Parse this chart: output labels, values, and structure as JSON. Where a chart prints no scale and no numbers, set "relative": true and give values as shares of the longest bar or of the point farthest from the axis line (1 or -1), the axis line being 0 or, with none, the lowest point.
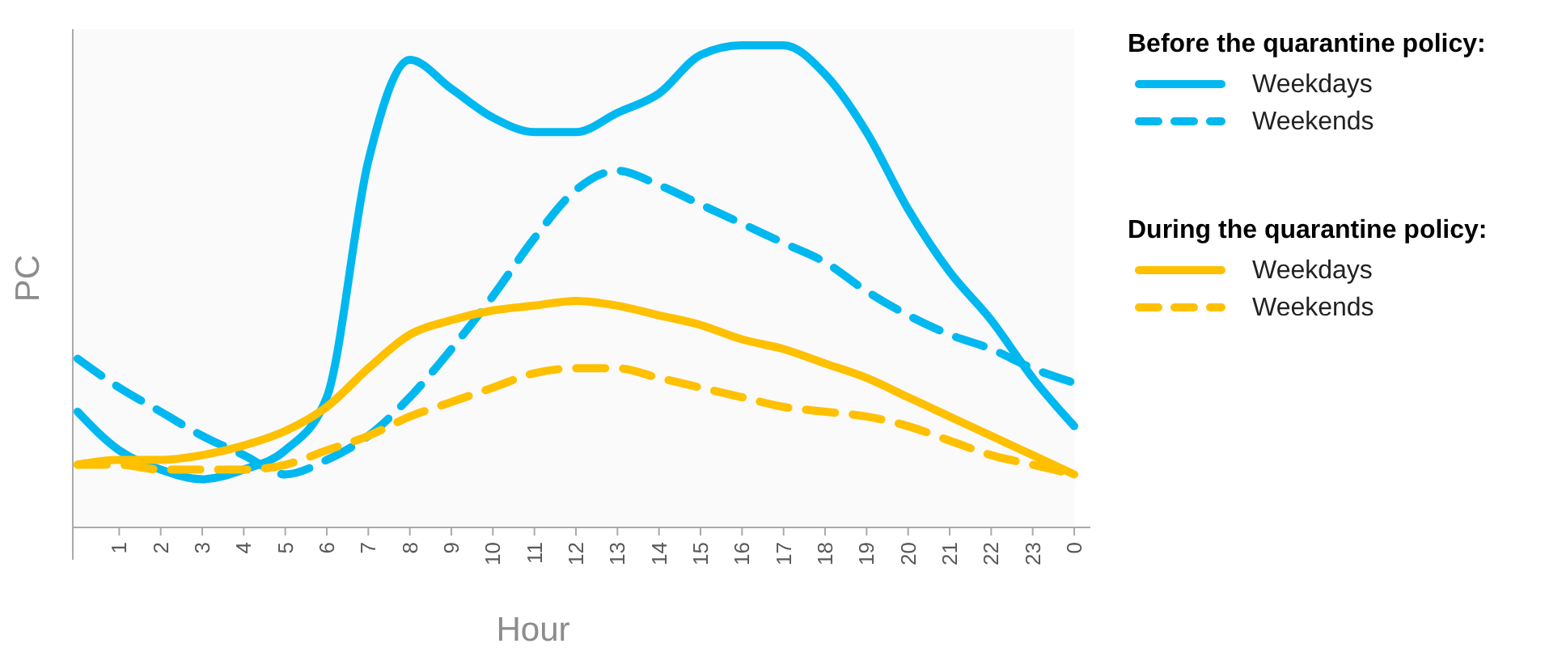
{
  "chart_data": {
    "type": "line",
    "relative": true,
    "xlabel": "Hour",
    "ylabel": "PC",
    "legend": "right",
    "categories": [
      null,
      "1",
      "2",
      "3",
      "4",
      "5",
      "6",
      "7",
      "8",
      "9",
      "10",
      "11",
      "12",
      "13",
      "14",
      "15",
      "16",
      "17",
      "18",
      "19",
      "20",
      "21",
      "22",
      "23",
      "0"
    ],
    "annotations": [
      "Before the quarantine policy:",
      "During the quarantine policy:"
    ],
    "series": [
      {
        "name": "Weekdays",
        "color": "#00b8f0",
        "line_style": "solid",
        "values": [
          0.24,
          0.16,
          0.12,
          0.1,
          0.12,
          0.16,
          0.27,
          0.76,
          0.97,
          0.91,
          0.85,
          0.82,
          0.82,
          0.86,
          0.9,
          0.98,
          1.0,
          1.0,
          0.94,
          0.82,
          0.66,
          0.53,
          0.43,
          0.31,
          0.21
        ]
      },
      {
        "name": "Weekends",
        "color": "#00b8f0",
        "line_style": "dashed",
        "values": [
          0.35,
          0.29,
          0.24,
          0.19,
          0.15,
          0.11,
          0.14,
          0.19,
          0.27,
          0.37,
          0.48,
          0.6,
          0.7,
          0.74,
          0.71,
          0.67,
          0.63,
          0.59,
          0.55,
          0.49,
          0.44,
          0.4,
          0.37,
          0.33,
          0.3
        ]
      },
      {
        "name": "Weekdays",
        "color": "#ffc000",
        "line_style": "solid",
        "values": [
          0.13,
          0.14,
          0.14,
          0.15,
          0.17,
          0.2,
          0.25,
          0.33,
          0.4,
          0.43,
          0.45,
          0.46,
          0.47,
          0.46,
          0.44,
          0.42,
          0.39,
          0.37,
          0.34,
          0.31,
          0.27,
          0.23,
          0.19,
          0.15,
          0.11
        ]
      },
      {
        "name": "Weekends",
        "color": "#ffc000",
        "line_style": "dashed",
        "values": [
          0.13,
          0.13,
          0.12,
          0.12,
          0.12,
          0.13,
          0.16,
          0.19,
          0.23,
          0.26,
          0.29,
          0.32,
          0.33,
          0.33,
          0.31,
          0.29,
          0.27,
          0.25,
          0.24,
          0.23,
          0.21,
          0.18,
          0.15,
          0.13,
          0.11
        ]
      }
    ]
  }
}
